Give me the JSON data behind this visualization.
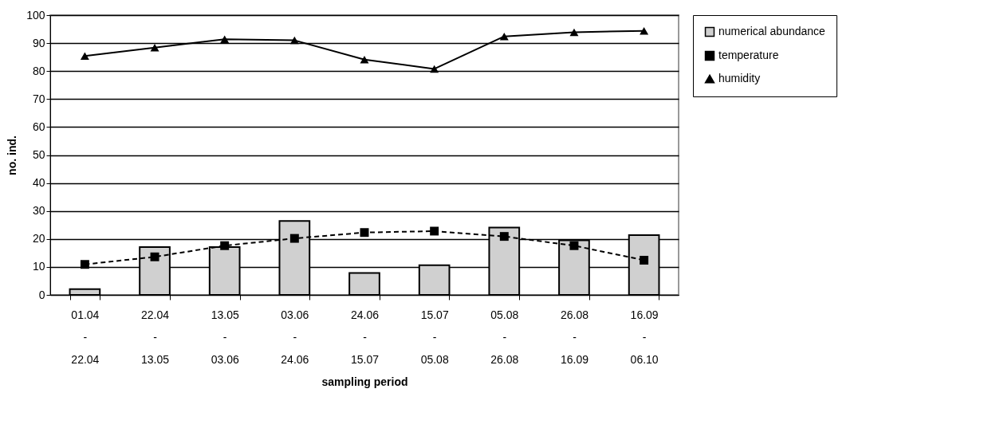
{
  "chart_data": {
    "type": "bar",
    "categories": [
      "01.04\n-\n22.04",
      "22.04\n-\n13.05",
      "13.05\n-\n03.06",
      "03.06\n-\n24.06",
      "24.06\n-\n15.07",
      "15.07\n-\n05.08",
      "05.08\n-\n26.08",
      "26.08\n-\n16.09",
      "16.09\n-\n06.10"
    ],
    "series": [
      {
        "name": "numerical abundance",
        "color": "#d0d0d0",
        "values": [
          2.1,
          17.1,
          17.1,
          26.4,
          7.8,
          10.6,
          24.1,
          19.5,
          21.4
        ]
      },
      {
        "name": "temperature",
        "type": "line",
        "color": "#000000",
        "marker": "square",
        "line_style": "dashed",
        "values": [
          10.9,
          13.6,
          17.6,
          20.2,
          22.3,
          22.8,
          20.9,
          17.6,
          12.4
        ]
      },
      {
        "name": "humidity",
        "type": "line",
        "color": "#000000",
        "marker": "triangle",
        "line_style": "solid",
        "values": [
          85.4,
          88.4,
          91.4,
          91.0,
          84.1,
          80.8,
          92.4,
          93.9,
          94.4
        ]
      }
    ],
    "xlabel": "sampling period",
    "ylabel": "no. ind.",
    "ylim": [
      0,
      100
    ],
    "yticks": [
      0,
      10,
      20,
      30,
      40,
      50,
      60,
      70,
      80,
      90,
      100
    ],
    "grid": "y",
    "legend": "right"
  }
}
